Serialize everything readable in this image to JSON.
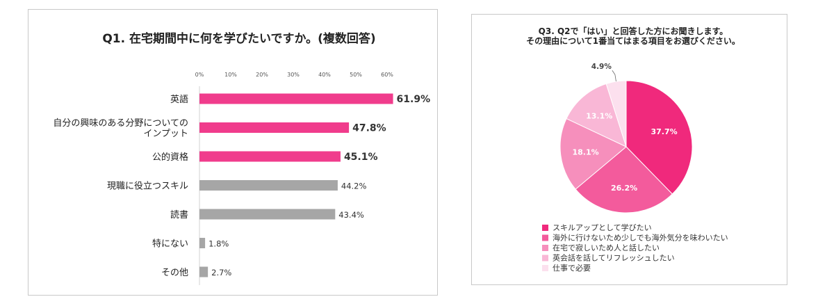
{
  "colors": {
    "accent": "#f03c8c",
    "gray": "#a6a6a6"
  },
  "chart_data": [
    {
      "type": "bar",
      "orientation": "horizontal",
      "title": "Q1. 在宅期間中に何を学びたいですか。(複数回答)",
      "xlim": [
        0,
        60
      ],
      "ticks": [
        "0%",
        "10%",
        "20%",
        "30%",
        "40%",
        "50%",
        "60%"
      ],
      "categories": [
        "英語",
        "自分の興味のある分野についての インプット",
        "公的資格",
        "現職に役立つスキル",
        "読書",
        "特にない",
        "その他"
      ],
      "category_lines": [
        [
          "英語"
        ],
        [
          "自分の興味のある分野についての",
          "インプット"
        ],
        [
          "公的資格"
        ],
        [
          "現職に役立つスキル"
        ],
        [
          "読書"
        ],
        [
          "特にない"
        ],
        [
          "その他"
        ]
      ],
      "values": [
        61.9,
        47.8,
        45.1,
        44.2,
        43.4,
        1.8,
        2.7
      ],
      "value_labels": [
        "61.9%",
        "47.8%",
        "45.1%",
        "44.2%",
        "43.4%",
        "1.8%",
        "2.7%"
      ],
      "highlighted": [
        true,
        true,
        true,
        false,
        false,
        false,
        false
      ]
    },
    {
      "type": "pie",
      "title": "Q3. Q2で「はい」と回答した方にお聞きします。 その理由について1番当てはまる項目をお選びください。",
      "title_lines": [
        "Q3. Q2で「はい」と回答した方にお聞きします。",
        "その理由について1番当てはまる項目をお選びください。"
      ],
      "labels": [
        "スキルアップとして学びたい",
        "海外に行けないため少しでも海外気分を味わいたい",
        "在宅で寂しいため人と話したい",
        "英会話を話してリフレッシュしたい",
        "仕事で必要"
      ],
      "values": [
        37.7,
        26.2,
        18.1,
        13.1,
        4.9
      ],
      "value_labels": [
        "37.7%",
        "26.2%",
        "18.1%",
        "13.1%",
        "4.9%"
      ],
      "colors": [
        "#f0297c",
        "#f35b9c",
        "#f68fbc",
        "#f9b7d6",
        "#fce0ee"
      ],
      "legend_position": "bottom"
    }
  ]
}
